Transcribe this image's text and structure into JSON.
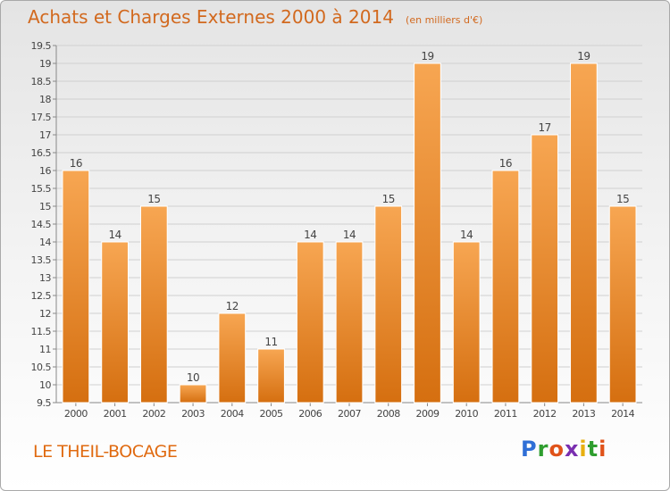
{
  "header": {
    "title": "Achats et Charges Externes 2000 à 2014",
    "unit": "(en milliers d'€)"
  },
  "footer": {
    "location": "LE THEIL-BOCAGE",
    "logo_letters": [
      "P",
      "r",
      "o",
      "x",
      "i",
      "t",
      "i"
    ],
    "logo_colors": [
      "#2f6fd6",
      "#2f9e2f",
      "#e0531a",
      "#7a2fb0",
      "#e8b010",
      "#2f9e2f",
      "#e0531a"
    ]
  },
  "colors": {
    "bar_top": "#f7a652",
    "bar_bottom": "#d56f10",
    "grid": "#d0d0d0",
    "axis": "#888888",
    "text": "#444444"
  },
  "chart_data": {
    "type": "bar",
    "title": "Achats et Charges Externes 2000 à 2014",
    "subtitle": "(en milliers d'€)",
    "categories": [
      "2000",
      "2001",
      "2002",
      "2003",
      "2004",
      "2005",
      "2006",
      "2007",
      "2008",
      "2009",
      "2010",
      "2011",
      "2012",
      "2013",
      "2014"
    ],
    "values": [
      16,
      14,
      15,
      10,
      12,
      11,
      14,
      14,
      15,
      19,
      14,
      16,
      17,
      19,
      15
    ],
    "data_labels": [
      "16",
      "14",
      "15",
      "10",
      "12",
      "11",
      "14",
      "14",
      "15",
      "19",
      "14",
      "16",
      "17",
      "19",
      "15"
    ],
    "ylim": [
      9.5,
      19.5
    ],
    "yticks": [
      "9.5",
      "10",
      "10.5",
      "11",
      "11.5",
      "12",
      "12.5",
      "13",
      "13.5",
      "14",
      "14.5",
      "15",
      "15.5",
      "16",
      "16.5",
      "17",
      "17.5",
      "18",
      "18.5",
      "19",
      "19.5"
    ],
    "grid": true,
    "legend": "none"
  }
}
